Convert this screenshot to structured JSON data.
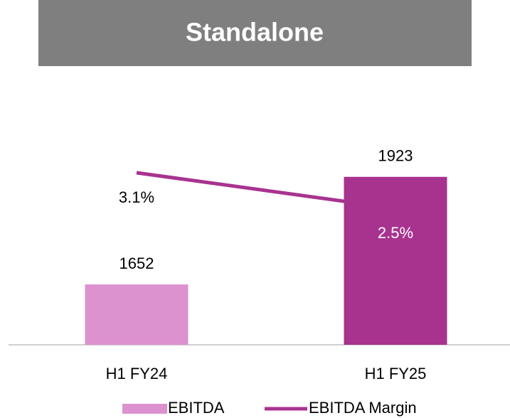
{
  "chart_data": {
    "type": "bar_line",
    "title": "Standalone",
    "categories": [
      "H1 FY24",
      "H1 FY25"
    ],
    "series": [
      {
        "name": "EBITDA",
        "type": "bar",
        "color": "#dc92cf",
        "colors": [
          "#dc92cf",
          "#a8338f"
        ],
        "values": [
          1652,
          1923
        ]
      },
      {
        "name": "EBITDA Margin",
        "type": "line",
        "axis": "y2",
        "color": "#a8338f",
        "values": [
          3.1,
          2.5
        ],
        "value_labels": [
          "3.1%",
          "2.5%"
        ]
      }
    ],
    "ylim": [
      1500,
      2150
    ],
    "y2lim": [
      0.2,
      4.55
    ],
    "legend": "bottom"
  }
}
